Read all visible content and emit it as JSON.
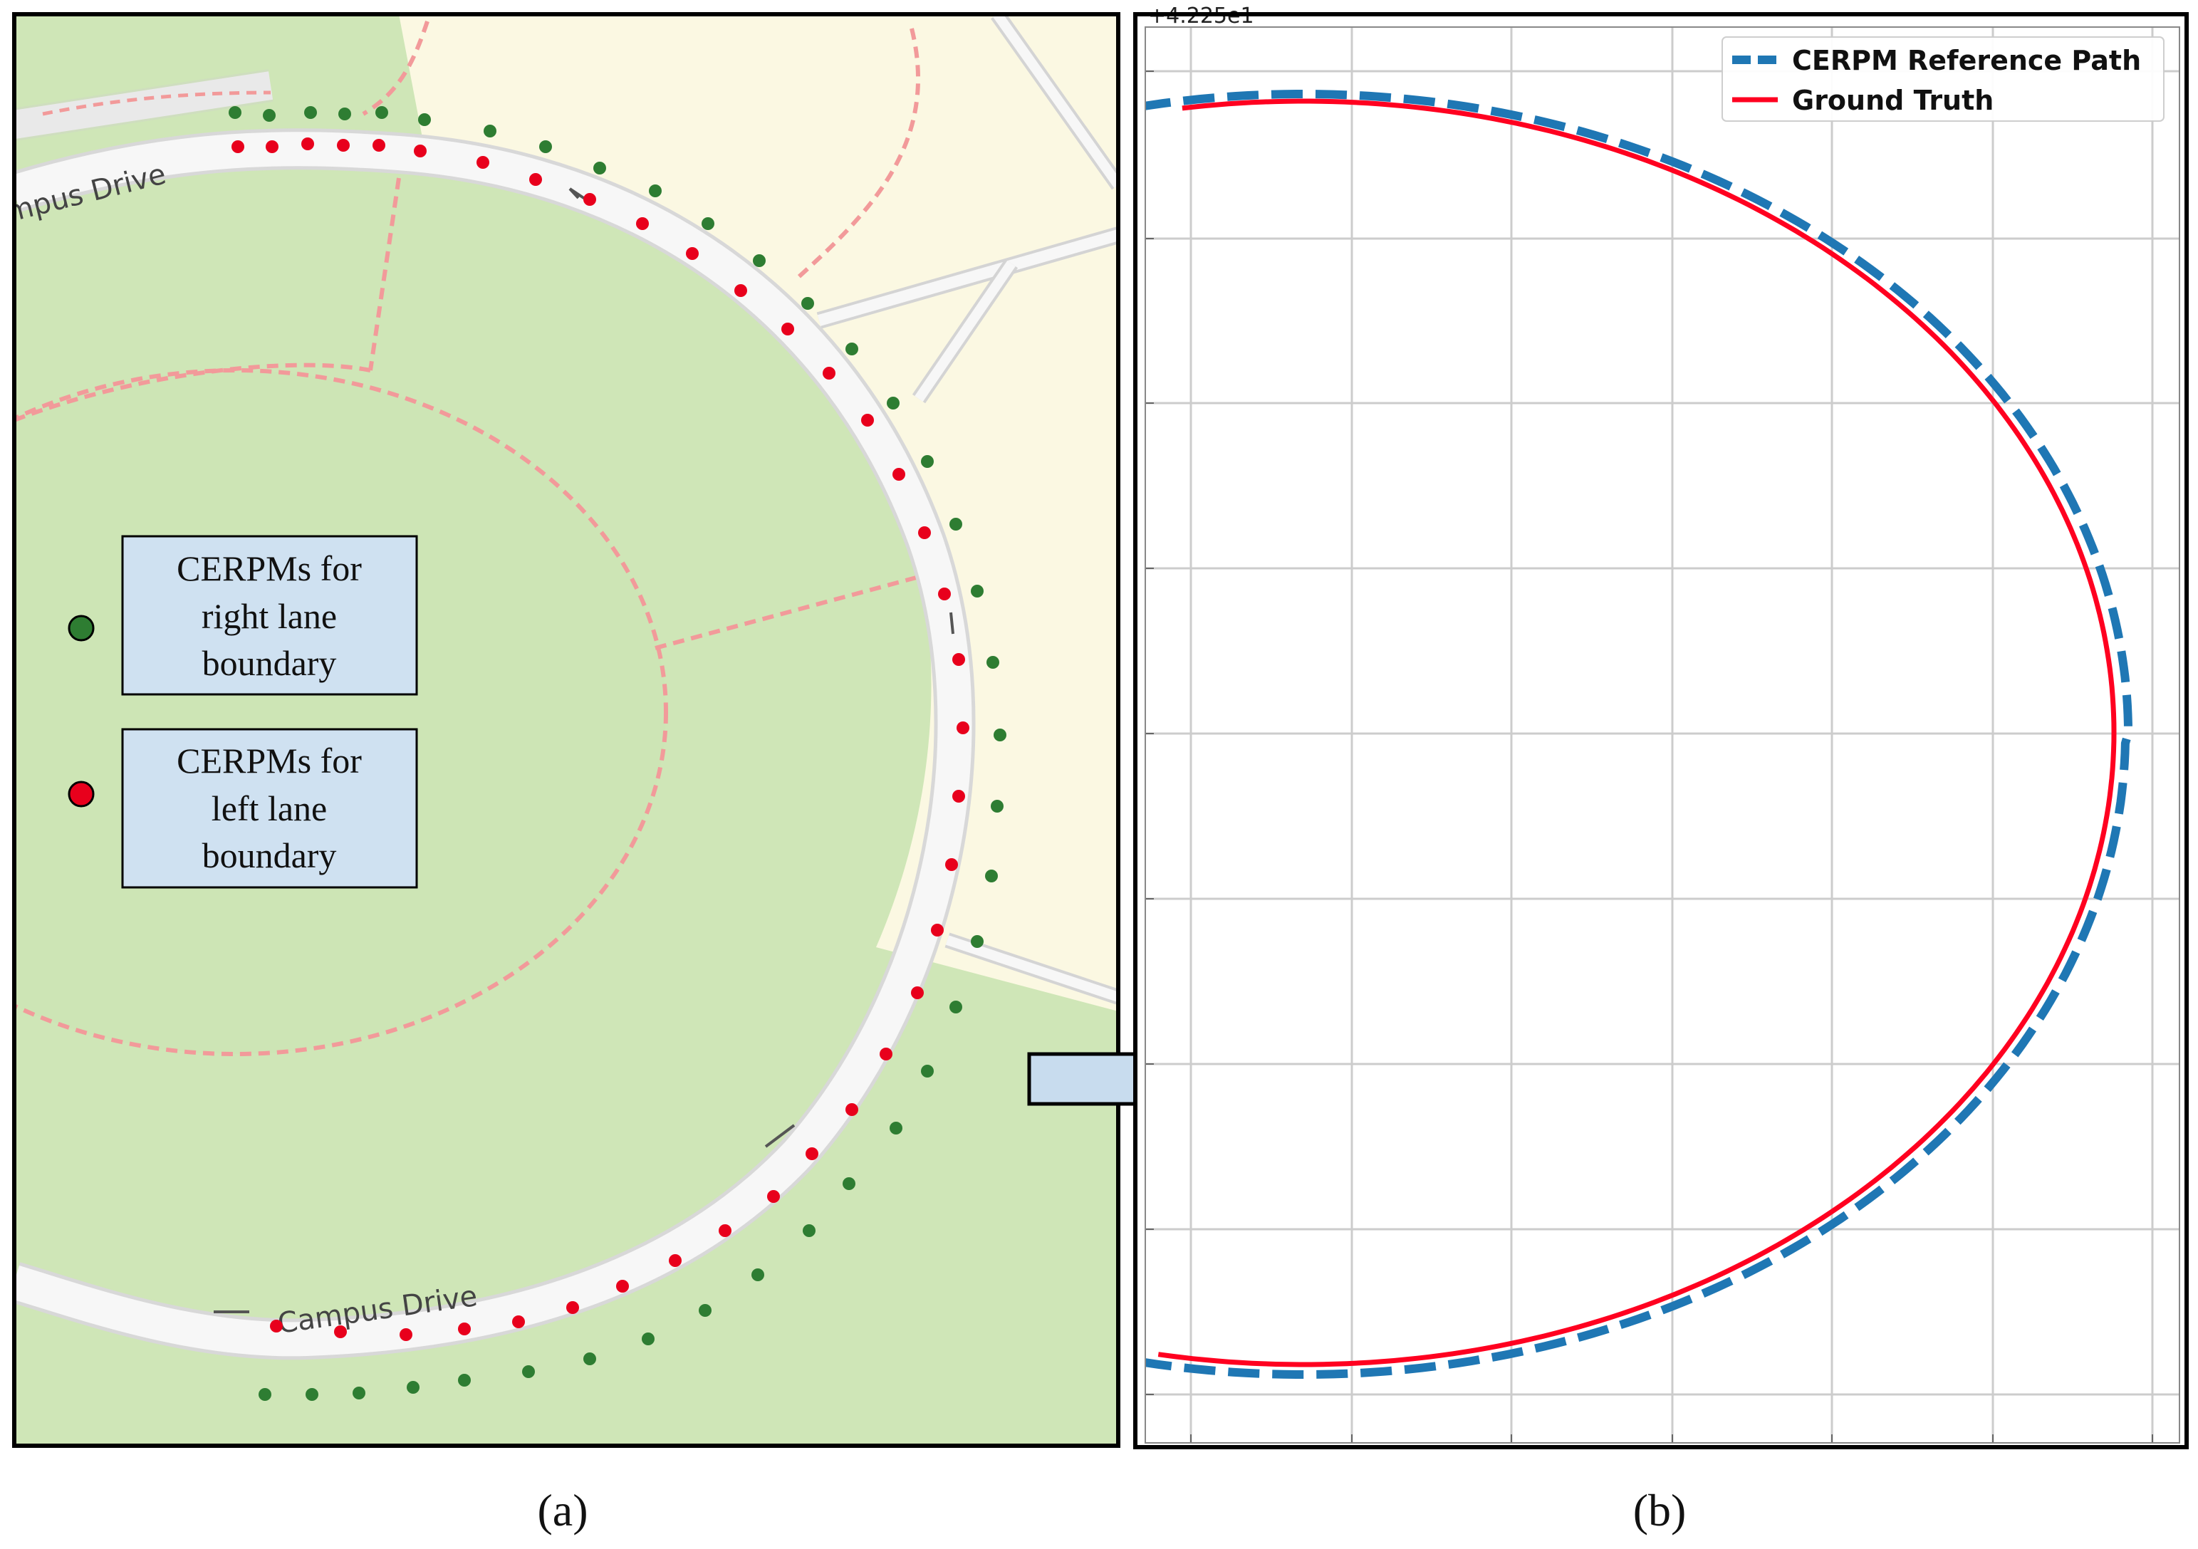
{
  "panel_a": {
    "road_labels": [
      "mpus Drive",
      "Campus Drive"
    ],
    "legend": [
      {
        "label_lines": [
          "CERPMs for",
          "right lane",
          "boundary"
        ],
        "dot_color": "#2e7d32"
      },
      {
        "label_lines": [
          "CERPMs for",
          "left lane",
          "boundary"
        ],
        "dot_color": "#e8001c"
      }
    ],
    "caption": "(a)"
  },
  "panel_b": {
    "caption": "(b)",
    "offset_text": "+4.225e1",
    "legend": [
      {
        "label": "CERPM Reference Path",
        "color": "#1f77b4",
        "style": "dashed"
      },
      {
        "label": "Ground Truth",
        "color": "#ff0020",
        "style": "solid"
      }
    ]
  },
  "colors": {
    "map_green": "#cfe6b7",
    "map_cream": "#fbf8e2",
    "road": "#f5f5f5",
    "footpath": "#f29a9a",
    "right_marker": "#2e7d32",
    "left_marker": "#e8001c",
    "arrow_fill": "#c8dcee",
    "legend_box_fill": "#cfe1f1"
  },
  "icons": {
    "transition_arrow": "right-arrow-icon",
    "lane_direction": "arrow-icon"
  }
}
